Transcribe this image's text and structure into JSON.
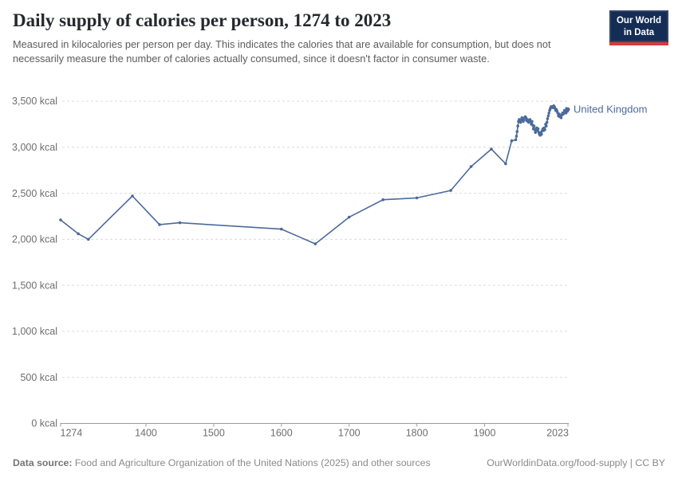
{
  "header": {
    "title": "Daily supply of calories per person, 1274 to 2023",
    "subtitle": "Measured in kilocalories per person per day. This indicates the calories that are available for consumption, but does not necessarily measure the number of calories actually consumed, since it doesn't factor in consumer waste.",
    "logo": {
      "line1": "Our World",
      "line2": "in Data"
    }
  },
  "footer": {
    "source_label": "Data source:",
    "source_text": " Food and Agriculture Organization of the United Nations (2025) and other sources",
    "credit": "OurWorldinData.org/food-supply | CC BY"
  },
  "chart_data": {
    "type": "line",
    "title": "Daily supply of calories per person, 1274 to 2023",
    "unit": "kcal",
    "xlim": [
      1274,
      2023
    ],
    "ylim": [
      0,
      3500
    ],
    "grid": "horizontal-dashed",
    "legend_position": "end-of-line-label",
    "x_ticks": [
      {
        "label": "1274",
        "year": 1274
      },
      {
        "label": "1400",
        "year": 1400
      },
      {
        "label": "1500",
        "year": 1500
      },
      {
        "label": "1600",
        "year": 1600
      },
      {
        "label": "1700",
        "year": 1700
      },
      {
        "label": "1800",
        "year": 1800
      },
      {
        "label": "1900",
        "year": 1900
      },
      {
        "label": "2023",
        "year": 2023
      }
    ],
    "y_ticks": [
      {
        "label": "0 kcal",
        "value": 0
      },
      {
        "label": "500 kcal",
        "value": 500
      },
      {
        "label": "1,000 kcal",
        "value": 1000
      },
      {
        "label": "1,500 kcal",
        "value": 1500
      },
      {
        "label": "2,000 kcal",
        "value": 2000
      },
      {
        "label": "2,500 kcal",
        "value": 2500
      },
      {
        "label": "3,000 kcal",
        "value": 3000
      },
      {
        "label": "3,500 kcal",
        "value": 3500
      }
    ],
    "colors": {
      "line": "#4c6a9c",
      "series_label": "#4c6a9c",
      "grid": "#dcdcdc",
      "axis": "#9c9c9c",
      "tick_text": "#6e6e6e"
    },
    "series": [
      {
        "name": "United Kingdom",
        "points": [
          [
            1274,
            2210
          ],
          [
            1300,
            2060
          ],
          [
            1315,
            2000
          ],
          [
            1380,
            2470
          ],
          [
            1420,
            2160
          ],
          [
            1450,
            2180
          ],
          [
            1600,
            2110
          ],
          [
            1650,
            1950
          ],
          [
            1700,
            2240
          ],
          [
            1750,
            2430
          ],
          [
            1800,
            2450
          ],
          [
            1850,
            2530
          ],
          [
            1880,
            2790
          ],
          [
            1910,
            2980
          ],
          [
            1931,
            2820
          ],
          [
            1940,
            3070
          ],
          [
            1946,
            3080
          ],
          [
            1947,
            3120
          ],
          [
            1948,
            3170
          ],
          [
            1949,
            3230
          ],
          [
            1950,
            3280
          ],
          [
            1951,
            3300
          ],
          [
            1952,
            3290
          ],
          [
            1953,
            3270
          ],
          [
            1954,
            3300
          ],
          [
            1955,
            3320
          ],
          [
            1956,
            3300
          ],
          [
            1957,
            3280
          ],
          [
            1958,
            3300
          ],
          [
            1959,
            3320
          ],
          [
            1960,
            3330
          ],
          [
            1961,
            3320
          ],
          [
            1962,
            3290
          ],
          [
            1963,
            3300
          ],
          [
            1964,
            3280
          ],
          [
            1965,
            3270
          ],
          [
            1966,
            3290
          ],
          [
            1967,
            3300
          ],
          [
            1968,
            3280
          ],
          [
            1969,
            3250
          ],
          [
            1970,
            3280
          ],
          [
            1971,
            3240
          ],
          [
            1972,
            3200
          ],
          [
            1973,
            3230
          ],
          [
            1974,
            3190
          ],
          [
            1975,
            3160
          ],
          [
            1976,
            3190
          ],
          [
            1977,
            3210
          ],
          [
            1978,
            3180
          ],
          [
            1979,
            3200
          ],
          [
            1980,
            3160
          ],
          [
            1981,
            3140
          ],
          [
            1982,
            3130
          ],
          [
            1983,
            3160
          ],
          [
            1984,
            3140
          ],
          [
            1985,
            3180
          ],
          [
            1986,
            3200
          ],
          [
            1987,
            3180
          ],
          [
            1988,
            3210
          ],
          [
            1989,
            3190
          ],
          [
            1990,
            3250
          ],
          [
            1991,
            3230
          ],
          [
            1992,
            3270
          ],
          [
            1993,
            3310
          ],
          [
            1994,
            3340
          ],
          [
            1995,
            3370
          ],
          [
            1996,
            3400
          ],
          [
            1997,
            3420
          ],
          [
            1998,
            3440
          ],
          [
            1999,
            3430
          ],
          [
            2000,
            3440
          ],
          [
            2001,
            3430
          ],
          [
            2002,
            3450
          ],
          [
            2003,
            3440
          ],
          [
            2004,
            3420
          ],
          [
            2005,
            3400
          ],
          [
            2006,
            3410
          ],
          [
            2007,
            3390
          ],
          [
            2008,
            3370
          ],
          [
            2009,
            3340
          ],
          [
            2010,
            3360
          ],
          [
            2011,
            3330
          ],
          [
            2012,
            3340
          ],
          [
            2013,
            3320
          ],
          [
            2014,
            3350
          ],
          [
            2015,
            3370
          ],
          [
            2016,
            3360
          ],
          [
            2017,
            3380
          ],
          [
            2018,
            3400
          ],
          [
            2019,
            3390
          ],
          [
            2020,
            3370
          ],
          [
            2021,
            3420
          ],
          [
            2022,
            3390
          ],
          [
            2023,
            3410
          ]
        ]
      }
    ]
  }
}
